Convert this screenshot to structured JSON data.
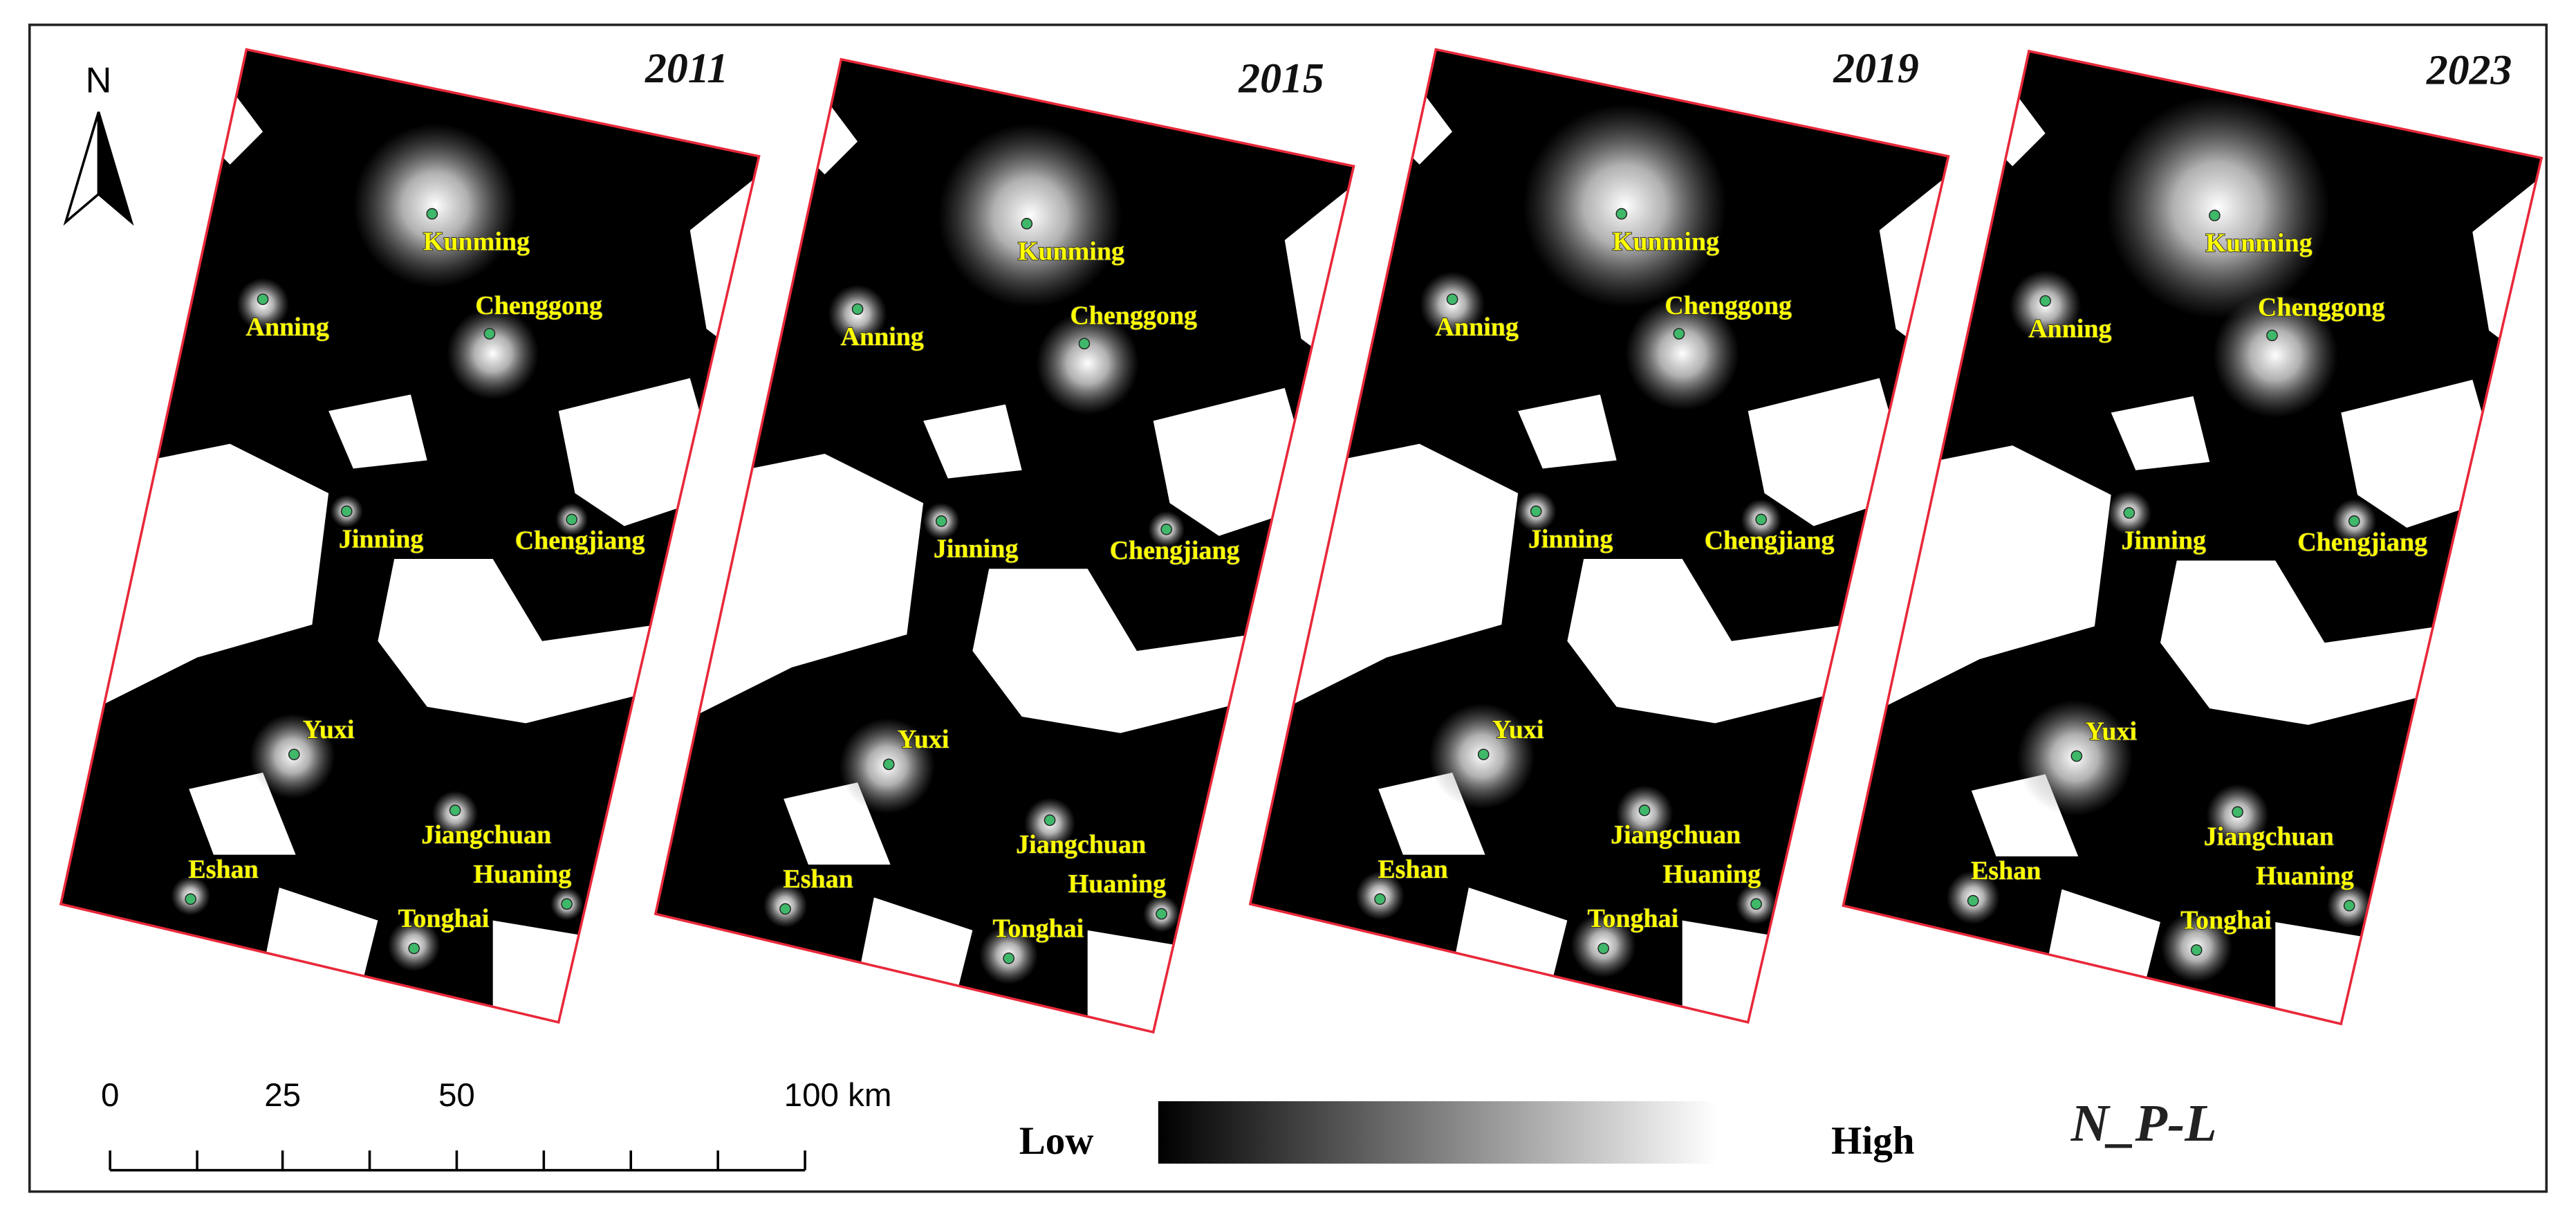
{
  "north": "N",
  "panels": [
    {
      "year": "2011"
    },
    {
      "year": "2015"
    },
    {
      "year": "2019"
    },
    {
      "year": "2023"
    }
  ],
  "cities": [
    "Kunming",
    "Anning",
    "Chenggong",
    "Jinning",
    "Chengjiang",
    "Yuxi",
    "Jiangchuan",
    "Huaning",
    "Eshan",
    "Tonghai"
  ],
  "scale_bar": {
    "ticks": [
      "0",
      "25",
      "50",
      "100 km"
    ]
  },
  "legend": {
    "low": "Low",
    "high": "High"
  },
  "title": "N_P-L"
}
